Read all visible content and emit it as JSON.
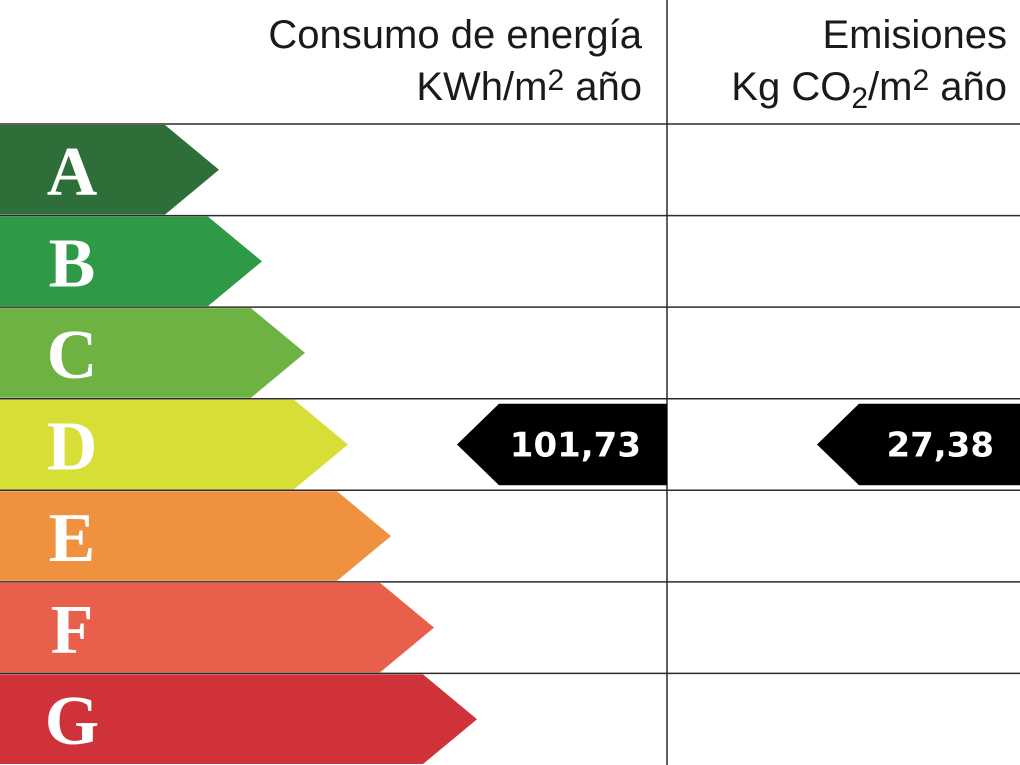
{
  "header": {
    "energy_title": "Consumo de energía",
    "energy_unit_main": "KWh/m",
    "energy_unit_sup": "2",
    "energy_unit_tail": " año",
    "emissions_title": "Emisiones",
    "emissions_unit_a": "Kg CO",
    "emissions_unit_sub": "2",
    "emissions_unit_b": "/m",
    "emissions_unit_sup": "2",
    "emissions_unit_tail": " año"
  },
  "chart_data": {
    "type": "table",
    "classes": [
      {
        "letter": "A",
        "color": "#2e6e38"
      },
      {
        "letter": "B",
        "color": "#2e9a46"
      },
      {
        "letter": "C",
        "color": "#6db243"
      },
      {
        "letter": "D",
        "color": "#d7de36"
      },
      {
        "letter": "E",
        "color": "#f0913f"
      },
      {
        "letter": "F",
        "color": "#e8604c"
      },
      {
        "letter": "G",
        "color": "#cf3238"
      }
    ],
    "energy": {
      "class": "D",
      "value": "101,73"
    },
    "emissions": {
      "class": "D",
      "value": "27,38"
    },
    "indicator_color": "#000000"
  }
}
